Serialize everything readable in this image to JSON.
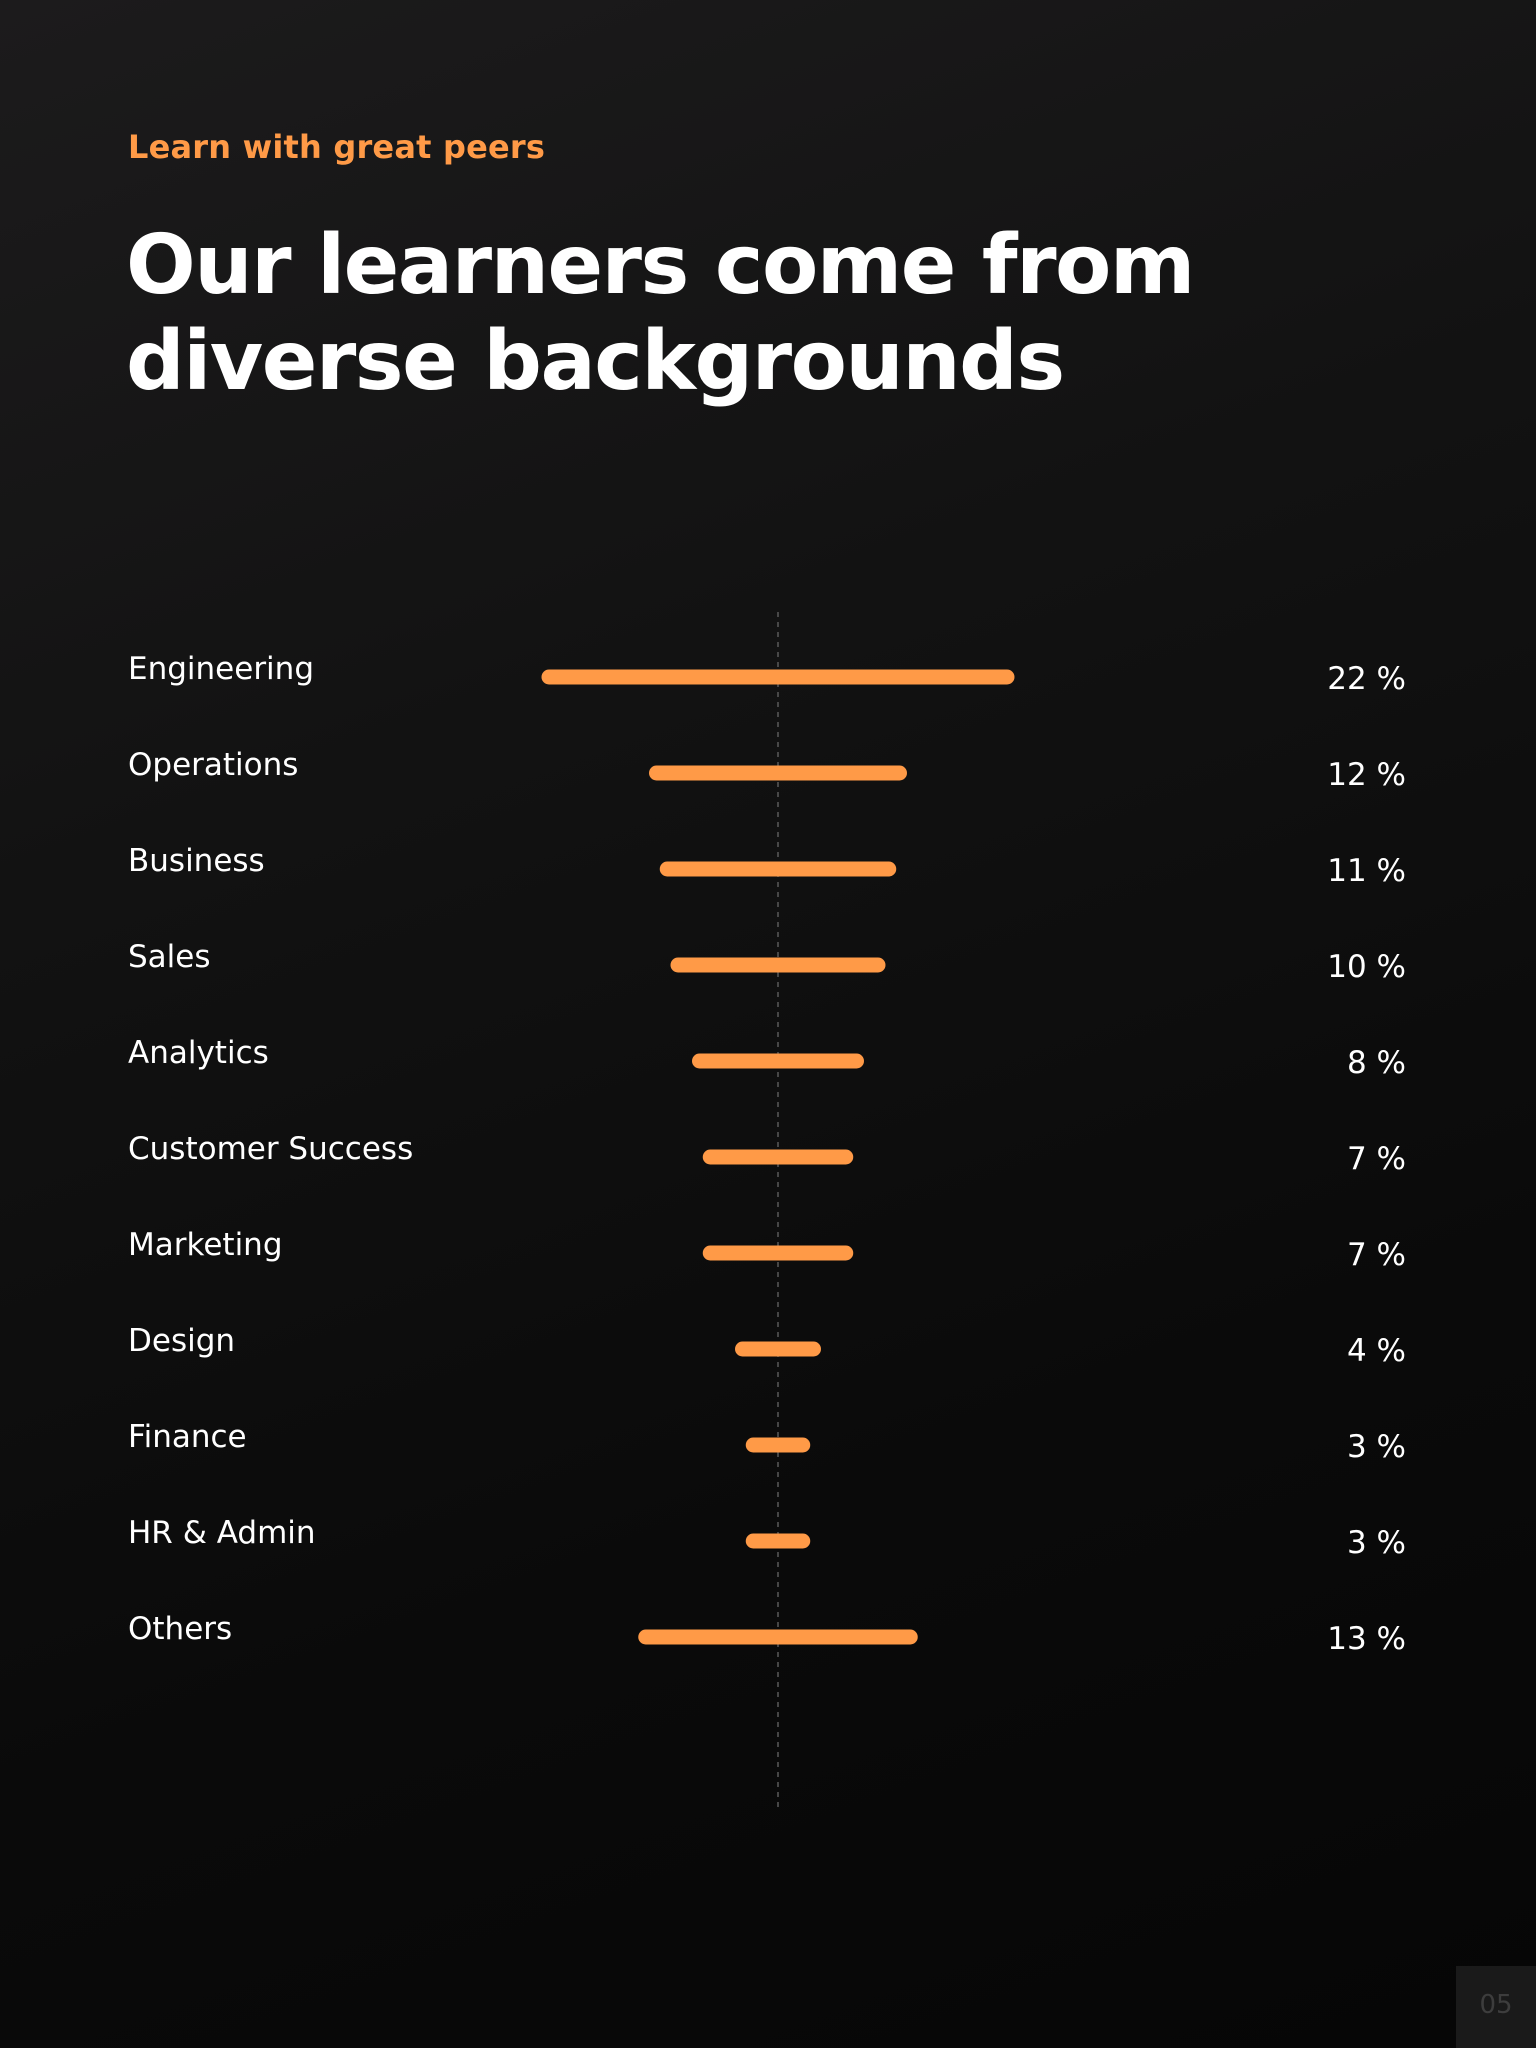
{
  "header": {
    "eyebrow": "Learn with great peers",
    "title_line1": "Our learners come from",
    "title_line2": "diverse backgrounds"
  },
  "colors": {
    "accent": "#ff9a47",
    "background": "#0d0d0d",
    "text": "#ffffff"
  },
  "chart_data": {
    "type": "bar",
    "orientation": "horizontal-centered",
    "categories": [
      "Engineering",
      "Operations",
      "Business",
      "Sales",
      "Analytics",
      "Customer Success",
      "Marketing",
      "Design",
      "Finance",
      "HR & Admin",
      "Others"
    ],
    "values": [
      22,
      12,
      11,
      10,
      8,
      7,
      7,
      4,
      3,
      3,
      13
    ],
    "value_labels": [
      "22 %",
      "12 %",
      "11 %",
      "10 %",
      "8 %",
      "7 %",
      "7 %",
      "4 %",
      "3 %",
      "3 %",
      "13 %"
    ],
    "unit": "%",
    "bar_color": "#ff9a47",
    "grid": true
  },
  "footer": {
    "page_number": "05"
  }
}
